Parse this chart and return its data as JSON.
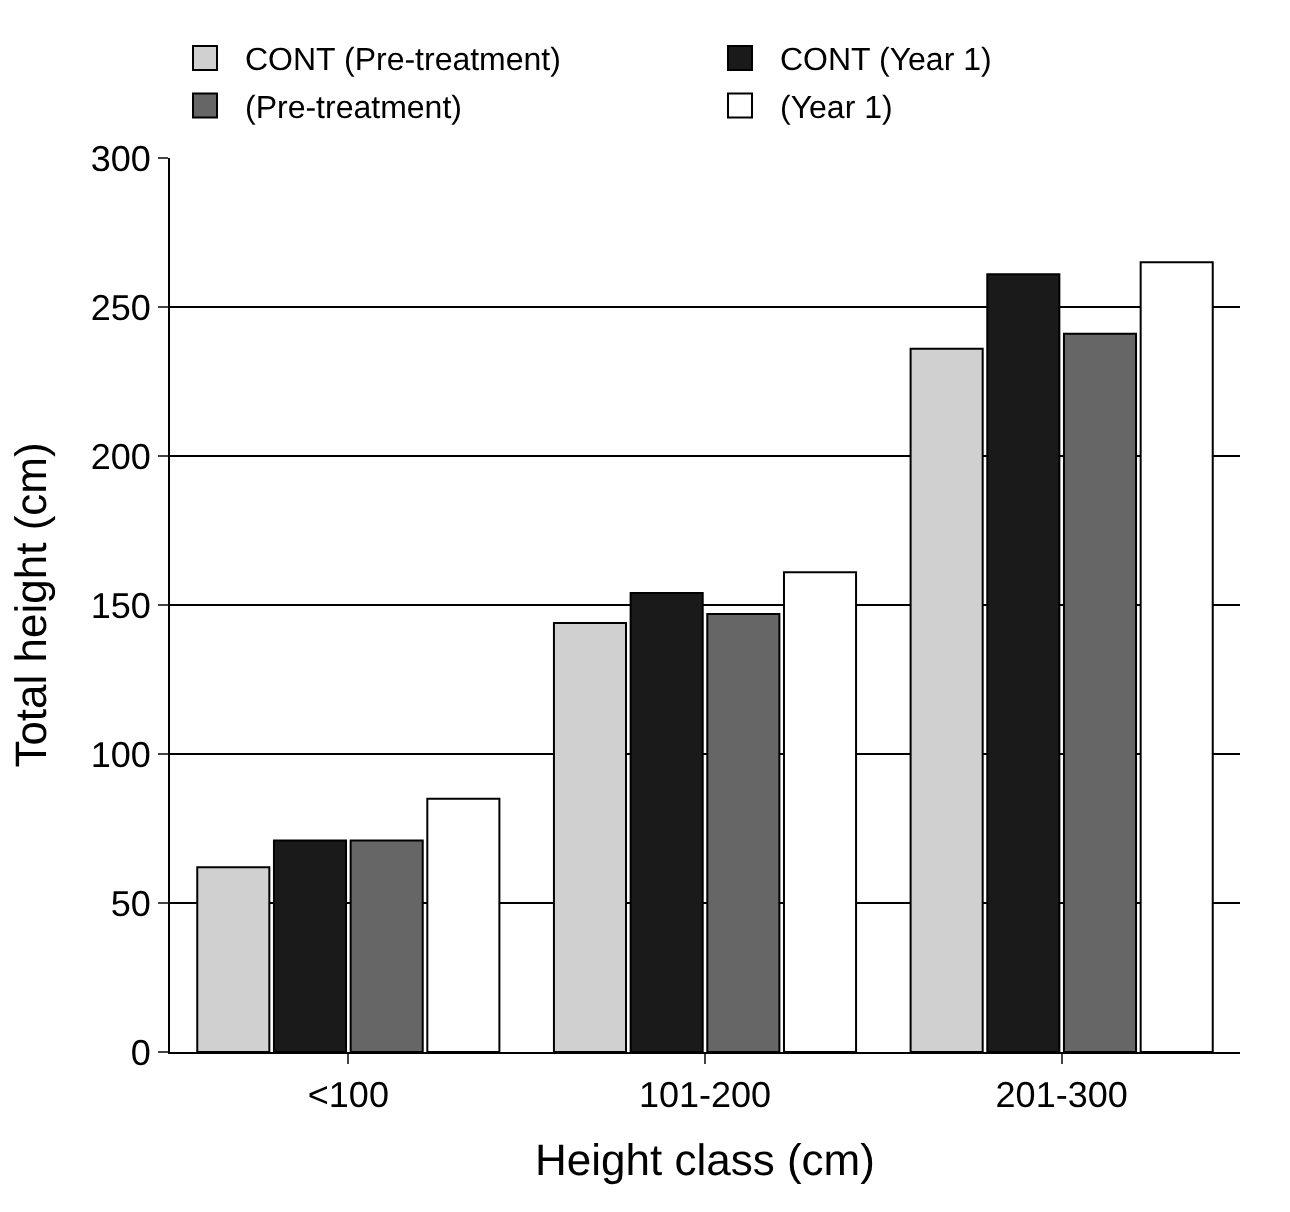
{
  "chart_data": {
    "type": "bar",
    "xlabel": "Height class (cm)",
    "ylabel": "Total height (cm)",
    "categories": [
      "<100",
      "101-200",
      "201-300"
    ],
    "series": [
      {
        "name": "CONT (Pre-treatment)",
        "color": "#d0d0d0",
        "values": [
          62,
          144,
          236
        ]
      },
      {
        "name": "CONT (Year 1)",
        "color": "#1a1a1a",
        "values": [
          71,
          154,
          261
        ]
      },
      {
        "name": "(Pre-treatment)",
        "color": "#666666",
        "values": [
          71,
          147,
          241
        ]
      },
      {
        "name": "(Year 1)",
        "color": "#ffffff",
        "values": [
          85,
          161,
          265
        ]
      }
    ],
    "ylim": [
      0,
      300
    ],
    "yticks": [
      0,
      50,
      100,
      150,
      200,
      250,
      300
    ],
    "grid": "y",
    "legend": "top"
  }
}
